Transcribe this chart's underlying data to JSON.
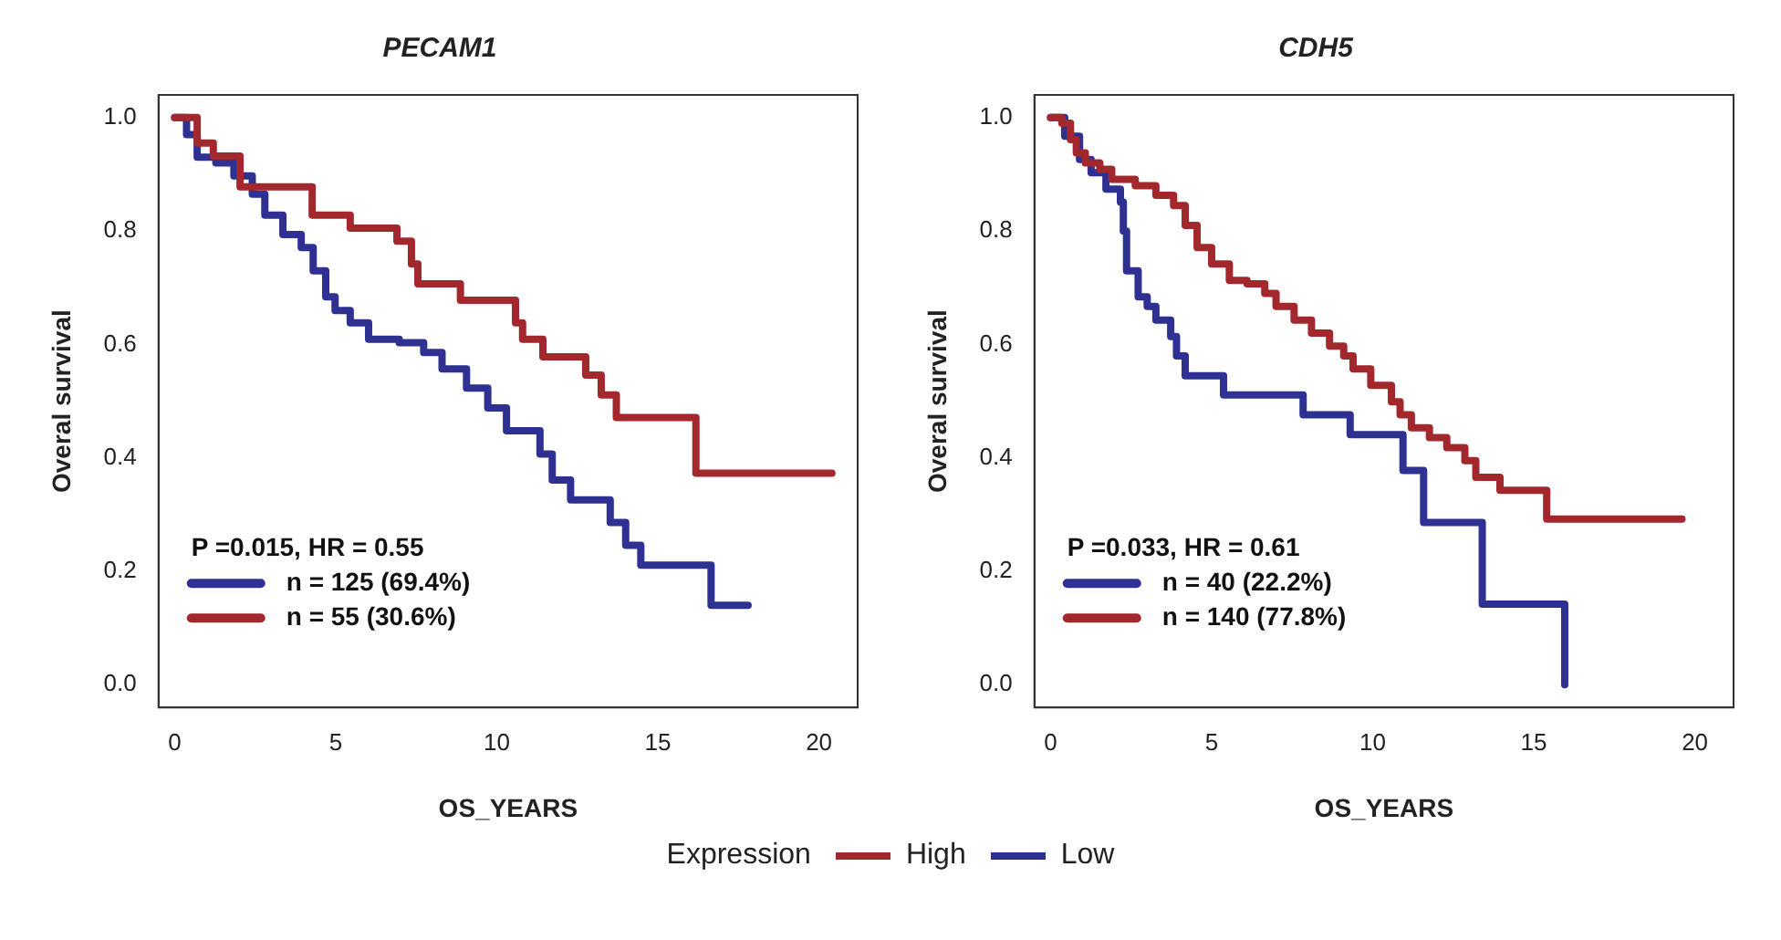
{
  "chart_data": [
    {
      "type": "step",
      "title": "PECAM1",
      "xlabel": "OS_YEARS",
      "ylabel": "Overal survival",
      "legend_title": "Expression",
      "legend": "bottom",
      "grid": false,
      "line_style": "solid",
      "marker": "none",
      "xlim": [
        -0.5,
        21.2
      ],
      "xticks": [
        0,
        5,
        10,
        15,
        20
      ],
      "ylim": [
        -0.04,
        1.04
      ],
      "yticks": [
        {
          "value": 0,
          "label": "0.0"
        },
        {
          "value": 0.2,
          "label": "0.2"
        },
        {
          "value": 0.4,
          "label": "0.4"
        },
        {
          "value": 0.6,
          "label": "0.6"
        },
        {
          "value": 0.8,
          "label": "0.8"
        },
        {
          "value": 1,
          "label": "1.0"
        }
      ],
      "annotations": [
        "P =0.015, HR = 0.55",
        "n = 125 (69.4%)",
        "n = 55 (30.6%)"
      ],
      "series": [
        {
          "name": "High",
          "color": "#a3282d",
          "x": [
            0,
            0.7,
            1.2,
            2.03,
            4.27,
            5.45,
            6.9,
            7.35,
            7.55,
            8.87,
            10.58,
            10.8,
            11.43,
            12.76,
            13.24,
            13.71,
            16.18,
            20.4
          ],
          "values": [
            1,
            0.955,
            0.932,
            0.878,
            0.828,
            0.805,
            0.782,
            0.742,
            0.707,
            0.678,
            0.638,
            0.609,
            0.578,
            0.546,
            0.511,
            0.471,
            0.373,
            0.373
          ]
        },
        {
          "name": "Low",
          "color": "#2e3192",
          "x": [
            0,
            0.37,
            0.7,
            1.28,
            1.84,
            2.41,
            2.8,
            3.36,
            3.93,
            4.3,
            4.69,
            4.98,
            5.45,
            6.02,
            6.97,
            7.73,
            8.3,
            9.06,
            9.72,
            10.3,
            11.34,
            11.72,
            12.29,
            13.52,
            14.0,
            14.47,
            16.65,
            17.8
          ],
          "values": [
            1,
            0.97,
            0.93,
            0.92,
            0.897,
            0.865,
            0.828,
            0.794,
            0.771,
            0.73,
            0.684,
            0.66,
            0.638,
            0.609,
            0.603,
            0.586,
            0.557,
            0.523,
            0.488,
            0.448,
            0.407,
            0.361,
            0.326,
            0.286,
            0.246,
            0.211,
            0.14,
            0.14
          ]
        }
      ]
    },
    {
      "type": "step",
      "title": "CDH5",
      "xlabel": "OS_YEARS",
      "ylabel": "Overal survival",
      "grid": false,
      "line_style": "solid",
      "marker": "none",
      "xlim": [
        -0.5,
        21.2
      ],
      "xticks": [
        0,
        5,
        10,
        15,
        20
      ],
      "ylim": [
        -0.04,
        1.04
      ],
      "yticks": [
        {
          "value": 0,
          "label": "0.0"
        },
        {
          "value": 0.2,
          "label": "0.2"
        },
        {
          "value": 0.4,
          "label": "0.4"
        },
        {
          "value": 0.6,
          "label": "0.6"
        },
        {
          "value": 0.8,
          "label": "0.8"
        },
        {
          "value": 1,
          "label": "1.0"
        }
      ],
      "annotations": [
        "P =0.033, HR = 0.61",
        "n = 40 (22.2%)",
        "n = 140 (77.8%)"
      ],
      "series": [
        {
          "name": "High",
          "color": "#a3282d",
          "x": [
            0,
            0.35,
            0.62,
            0.8,
            1.08,
            1.53,
            1.9,
            2.63,
            3.27,
            3.82,
            4.18,
            4.55,
            5.0,
            5.55,
            6.1,
            6.65,
            7.0,
            7.56,
            8.1,
            8.66,
            9.1,
            9.39,
            9.94,
            10.58,
            10.85,
            11.2,
            11.76,
            12.3,
            12.86,
            13.2,
            13.95,
            15.4,
            19.6
          ],
          "values": [
            1,
            0.99,
            0.961,
            0.938,
            0.92,
            0.909,
            0.891,
            0.88,
            0.863,
            0.845,
            0.81,
            0.771,
            0.742,
            0.713,
            0.707,
            0.69,
            0.667,
            0.643,
            0.62,
            0.597,
            0.58,
            0.557,
            0.528,
            0.499,
            0.476,
            0.453,
            0.436,
            0.418,
            0.395,
            0.366,
            0.343,
            0.292,
            0.292
          ]
        },
        {
          "name": "Low",
          "color": "#2e3192",
          "x": [
            0,
            0.44,
            0.9,
            1.26,
            1.72,
            2.17,
            2.26,
            2.36,
            2.72,
            3.0,
            3.27,
            3.73,
            3.91,
            4.18,
            5.37,
            7.84,
            9.3,
            10.94,
            11.58,
            13.4,
            15.96
          ],
          "values": [
            1,
            0.967,
            0.926,
            0.903,
            0.874,
            0.851,
            0.8,
            0.73,
            0.684,
            0.667,
            0.643,
            0.614,
            0.58,
            0.545,
            0.511,
            0.476,
            0.441,
            0.378,
            0.286,
            0.142,
            0
          ]
        }
      ]
    }
  ]
}
